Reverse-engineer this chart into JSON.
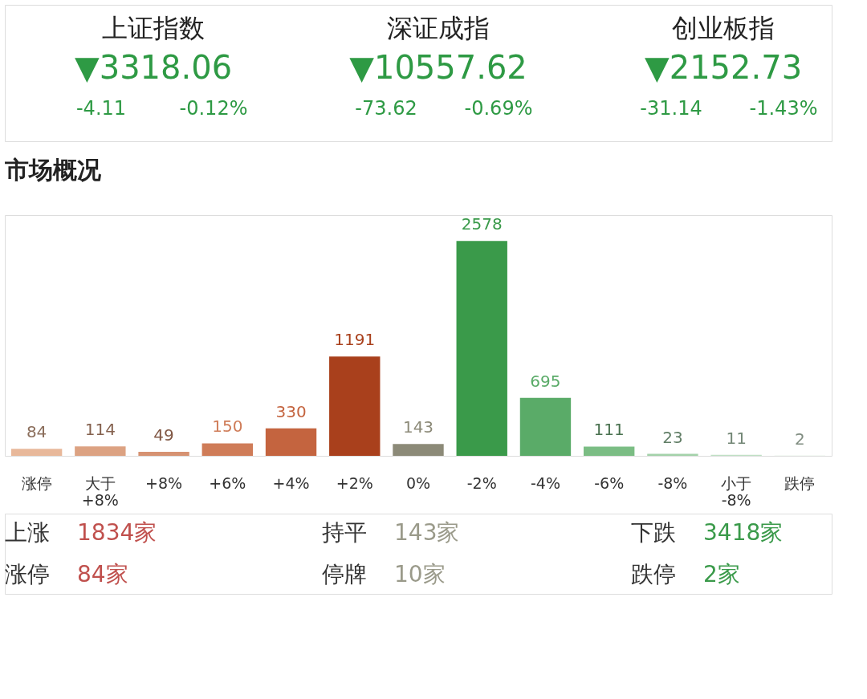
{
  "chart_data": [
    {
      "type": "other",
      "annotations": [
        "上证指数",
        "▼3318.06",
        "-4.11",
        "-0.12%",
        "深证成指",
        "▼10557.62",
        "-73.62",
        "-0.69%",
        "创业板指",
        "▼2152.73",
        "-31.14",
        "-1.43%"
      ]
    },
    {
      "type": "bar",
      "title": "市场概况",
      "categories": [
        "涨停",
        "大于 +8%",
        "+8%",
        "+6%",
        "+4%",
        "+2%",
        "0%",
        "-2%",
        "-4%",
        "-6%",
        "-8%",
        "小于 -8%",
        "跌停"
      ],
      "values": [
        84,
        114,
        49,
        150,
        330,
        1191,
        143,
        2578,
        695,
        111,
        23,
        11,
        2
      ],
      "colors": [
        "#e8b89a",
        "#dca282",
        "#d69272",
        "#cf7c58",
        "#c4643f",
        "#a9401c",
        "#8c8a78",
        "#3a9a4a",
        "#5aab68",
        "#7bbd84",
        "#a3d2aa",
        "#bfe0c4",
        "#d6ecd8"
      ],
      "data_labels": true,
      "annotations": [
        "上涨",
        "1834家",
        "持平",
        "143家",
        "下跌",
        "3418家",
        "涨停",
        "84家",
        "停牌",
        "10家",
        "跌停",
        "2家"
      ]
    }
  ]
}
